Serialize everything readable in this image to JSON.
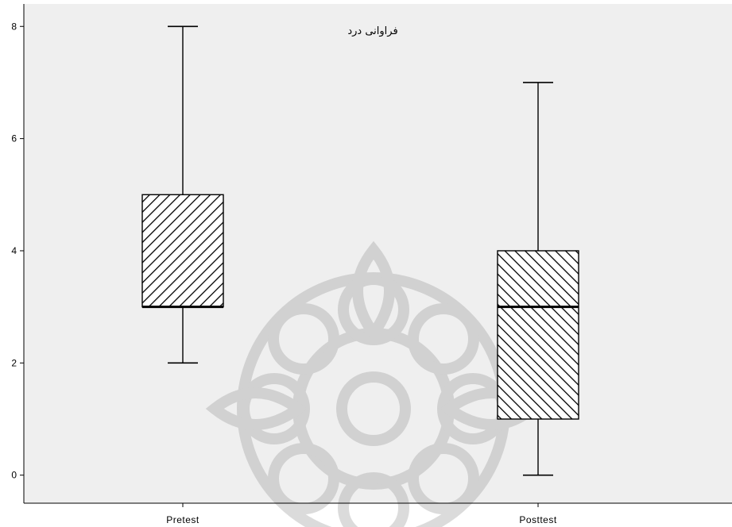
{
  "chart_data": {
    "type": "boxplot",
    "title": "فراوانی درد",
    "xlabel": "",
    "ylabel": "",
    "ylim": [
      -0.5,
      8.4
    ],
    "yticks": [
      0,
      2,
      4,
      6,
      8
    ],
    "grid": false,
    "categories": [
      "Pretest",
      "Posttest"
    ],
    "boxes": [
      {
        "category": "Pretest",
        "min": 2,
        "q1": 3,
        "median": 3,
        "q3": 5,
        "max": 8,
        "hatch": "backslash"
      },
      {
        "category": "Posttest",
        "min": 0,
        "q1": 1,
        "median": 3,
        "q3": 4,
        "max": 7,
        "hatch": "slash"
      }
    ],
    "colors": {
      "plot_background": "#efefef",
      "stroke": "#000000"
    },
    "watermark_icon": "rosette-watermark-icon"
  }
}
